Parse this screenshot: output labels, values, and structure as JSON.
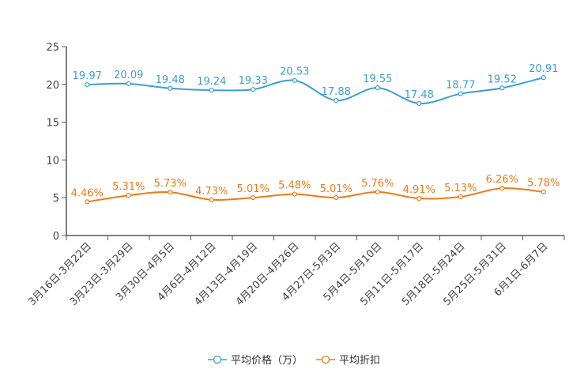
{
  "chart_data": {
    "type": "line",
    "title": "",
    "xlabel": "",
    "ylabel": "",
    "ylim": [
      0,
      25
    ],
    "yticks": [
      0,
      5,
      10,
      15,
      20,
      25
    ],
    "categories": [
      "3月16日-3月22日",
      "3月23日-3月29日",
      "3月30日-4月5日",
      "4月6日-4月12日",
      "4月13日-4月19日",
      "4月20日-4月26日",
      "4月27日-5月3日",
      "5月4日-5月10日",
      "5月11日-5月17日",
      "5月18日-5月24日",
      "5月25日-5月31日",
      "6月1日-6月7日"
    ],
    "series": [
      {
        "name": "平均价格（万）",
        "color": "#3a9fd0",
        "values": [
          19.97,
          20.09,
          19.48,
          19.24,
          19.33,
          20.53,
          17.88,
          19.55,
          17.48,
          18.77,
          19.52,
          20.91
        ],
        "labels": [
          "19.97",
          "20.09",
          "19.48",
          "19.24",
          "19.33",
          "20.53",
          "17.88",
          "19.55",
          "17.48",
          "18.77",
          "19.52",
          "20.91"
        ]
      },
      {
        "name": "平均折扣",
        "color": "#f07a14",
        "values": [
          4.46,
          5.31,
          5.73,
          4.73,
          5.01,
          5.48,
          5.01,
          5.76,
          4.91,
          5.13,
          6.26,
          5.78
        ],
        "labels": [
          "4.46%",
          "5.31%",
          "5.73%",
          "4.73%",
          "5.01%",
          "5.48%",
          "5.01%",
          "5.76%",
          "4.91%",
          "5.13%",
          "6.26%",
          "5.78%"
        ]
      }
    ],
    "legend": "bottom-center",
    "grid": false
  }
}
